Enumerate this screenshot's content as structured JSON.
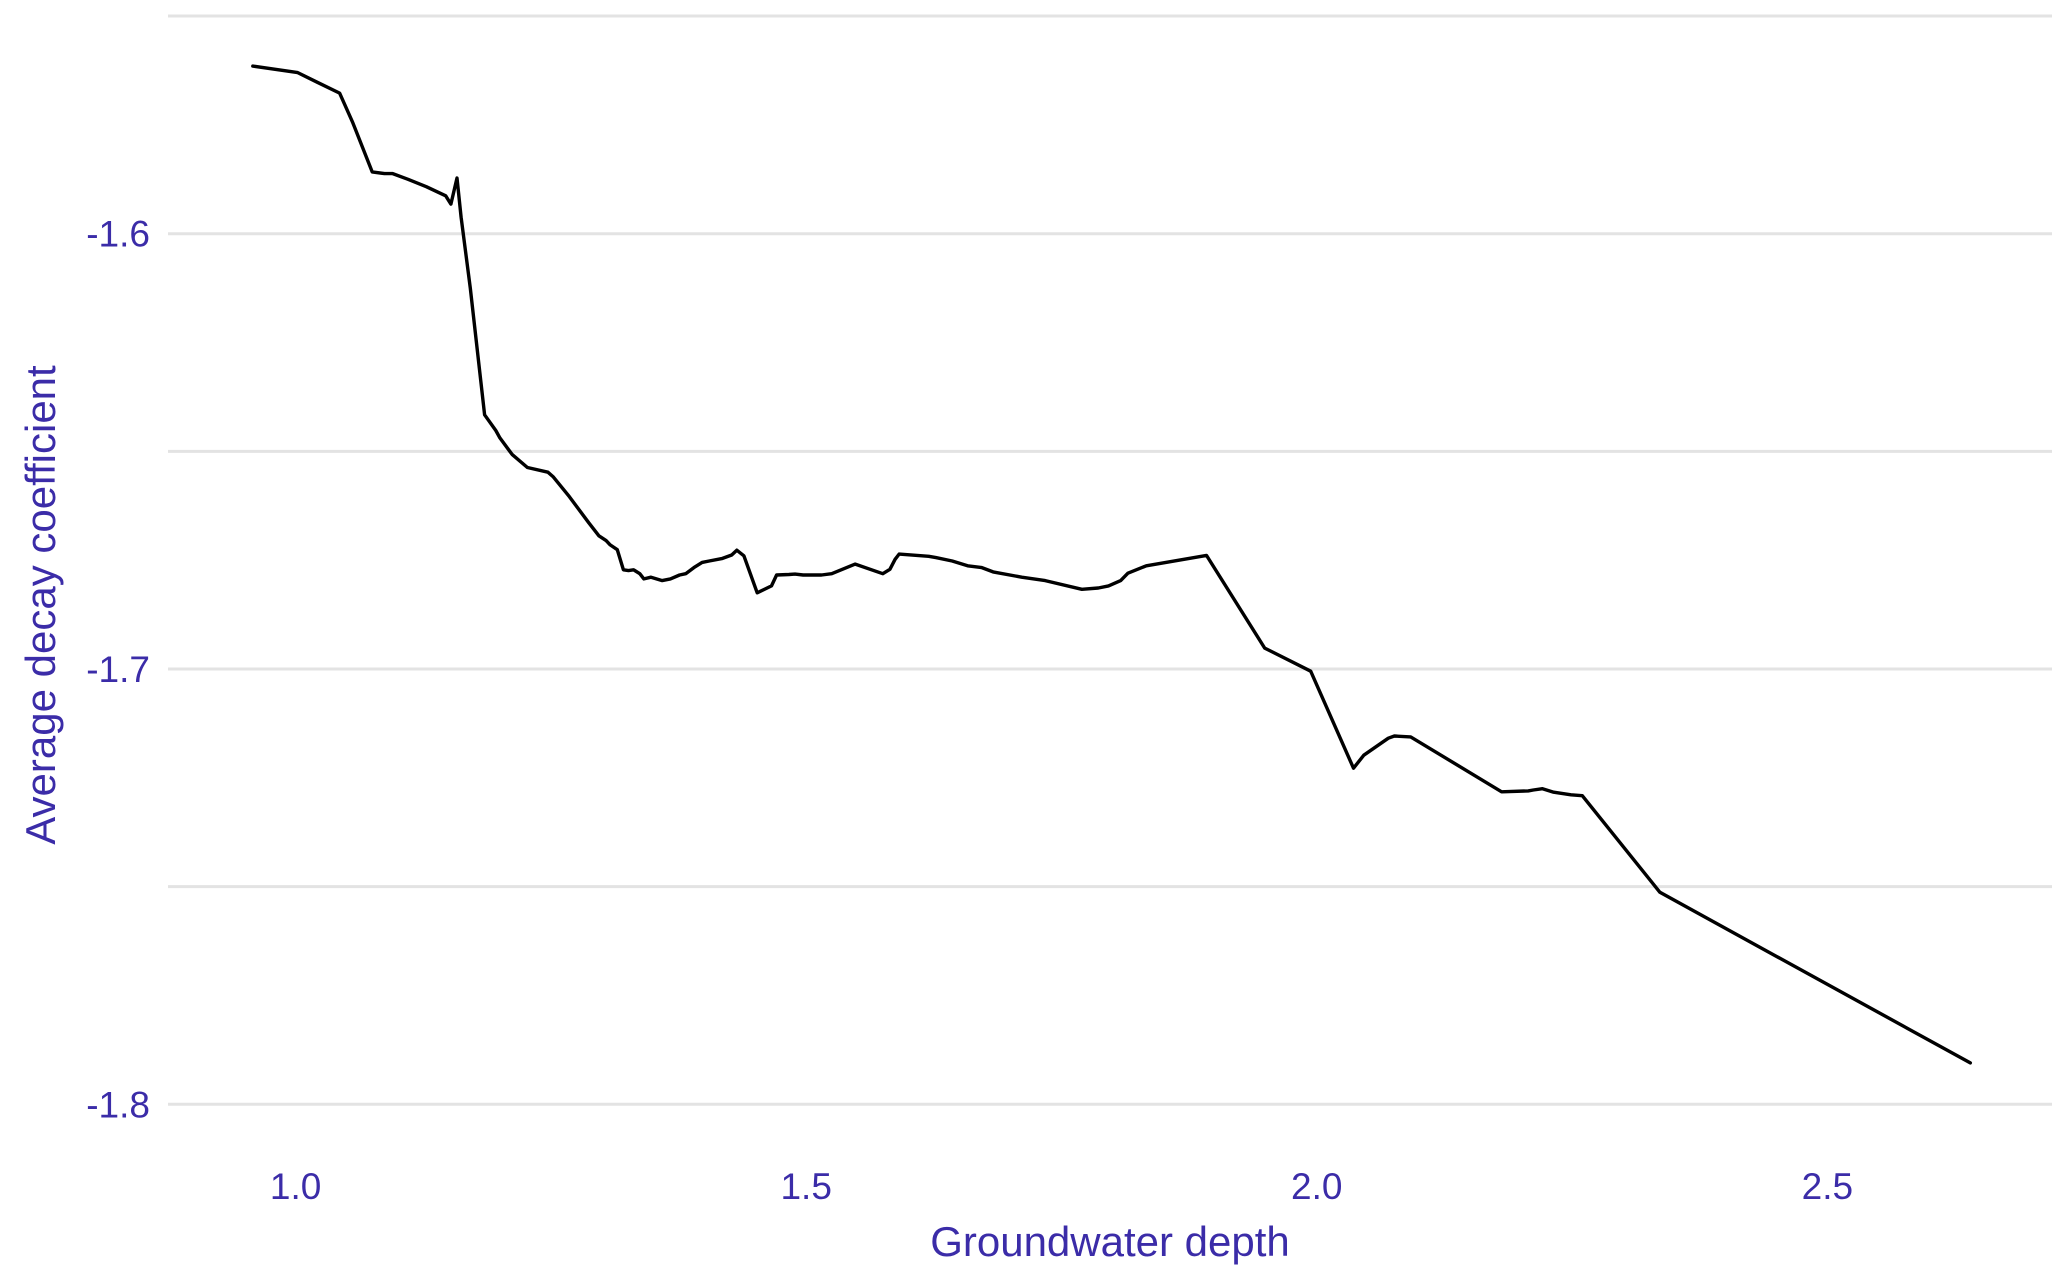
{
  "chart_data": {
    "type": "line",
    "title": "",
    "xlabel": "Groundwater depth",
    "ylabel": "Average decay coefficient",
    "xlim": [
      0.875,
      2.72
    ],
    "ylim": [
      -1.8105,
      -1.5555
    ],
    "x_ticks": [
      1.0,
      1.5,
      2.0,
      2.5
    ],
    "x_tick_labels": [
      "1.0",
      "1.5",
      "2.0",
      "2.5"
    ],
    "y_ticks": [
      -1.6,
      -1.7,
      -1.8
    ],
    "y_tick_labels": [
      "-1.6",
      "-1.7",
      "-1.8"
    ],
    "y_gridlines": [
      -1.55,
      -1.6,
      -1.65,
      -1.7,
      -1.75,
      -1.8
    ],
    "grid": true,
    "legend": "none",
    "colors": {
      "line": "#000000",
      "text": "#3b2ca8",
      "grid": "#e3e3e3"
    },
    "series": [
      {
        "name": "",
        "x": [
          0.958,
          1.002,
          1.021,
          1.043,
          1.056,
          1.075,
          1.087,
          1.095,
          1.11,
          1.128,
          1.147,
          1.152,
          1.158,
          1.162,
          1.171,
          1.185,
          1.196,
          1.2,
          1.212,
          1.227,
          1.247,
          1.252,
          1.268,
          1.287,
          1.297,
          1.304,
          1.308,
          1.315,
          1.321,
          1.326,
          1.331,
          1.337,
          1.341,
          1.348,
          1.359,
          1.367,
          1.376,
          1.382,
          1.39,
          1.398,
          1.405,
          1.418,
          1.427,
          1.432,
          1.439,
          1.452,
          1.466,
          1.471,
          1.483,
          1.489,
          1.497,
          1.515,
          1.525,
          1.548,
          1.575,
          1.582,
          1.587,
          1.591,
          1.62,
          1.627,
          1.643,
          1.658,
          1.672,
          1.683,
          1.711,
          1.734,
          1.77,
          1.786,
          1.796,
          1.808,
          1.815,
          1.833,
          1.892,
          1.949,
          1.994,
          2.036,
          2.046,
          2.07,
          2.076,
          2.092,
          2.181,
          2.207,
          2.212,
          2.221,
          2.232,
          2.249,
          2.26,
          2.336,
          2.64
        ],
        "y": [
          -1.5615,
          -1.563,
          -1.5652,
          -1.5677,
          -1.5745,
          -1.5858,
          -1.5862,
          -1.5862,
          -1.5875,
          -1.5892,
          -1.5913,
          -1.5932,
          -1.5872,
          -1.5962,
          -1.6125,
          -1.6416,
          -1.6452,
          -1.6469,
          -1.6507,
          -1.6537,
          -1.6548,
          -1.6558,
          -1.6604,
          -1.6664,
          -1.6694,
          -1.6705,
          -1.6715,
          -1.6726,
          -1.6772,
          -1.6774,
          -1.6772,
          -1.6781,
          -1.6793,
          -1.6789,
          -1.6797,
          -1.6793,
          -1.6784,
          -1.6781,
          -1.6767,
          -1.6755,
          -1.6752,
          -1.6746,
          -1.6738,
          -1.6727,
          -1.674,
          -1.6825,
          -1.6809,
          -1.6784,
          -1.6783,
          -1.6782,
          -1.6784,
          -1.6784,
          -1.6781,
          -1.6759,
          -1.6781,
          -1.6771,
          -1.6748,
          -1.6736,
          -1.6741,
          -1.6744,
          -1.6752,
          -1.6763,
          -1.6767,
          -1.6777,
          -1.6789,
          -1.6797,
          -1.6817,
          -1.6814,
          -1.6809,
          -1.6797,
          -1.678,
          -1.6763,
          -1.6739,
          -1.6952,
          -1.7005,
          -1.7228,
          -1.7198,
          -1.7159,
          -1.7154,
          -1.7156,
          -1.7282,
          -1.728,
          -1.7278,
          -1.7275,
          -1.7283,
          -1.7289,
          -1.7291,
          -1.7513,
          -1.7905
        ]
      }
    ]
  }
}
